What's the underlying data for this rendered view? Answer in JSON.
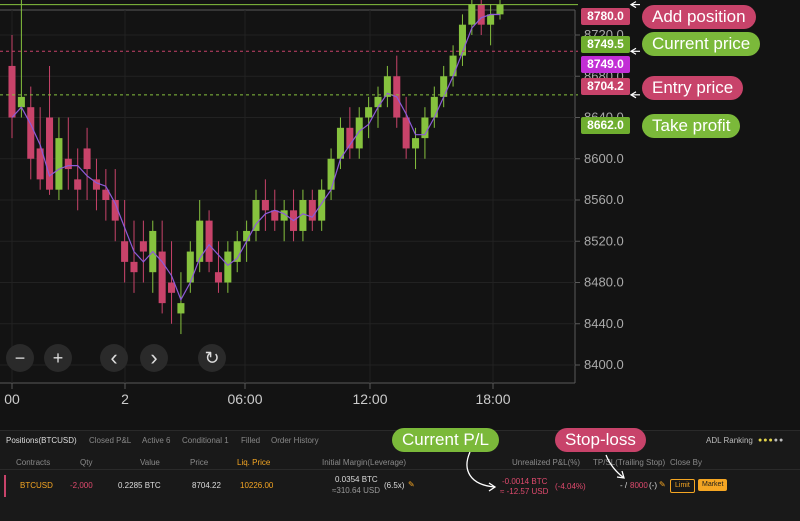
{
  "colors": {
    "up": "#86c23e",
    "down": "#c8436a",
    "accent": "#f5a623",
    "callout_red": "#c8436a",
    "callout_green": "#7bb93a",
    "mark_price": "#c22ed6"
  },
  "chart": {
    "y_ticks": [
      "8720.0",
      "8680.0",
      "8640.0",
      "8600.0",
      "8560.0",
      "8520.0",
      "8480.0",
      "8440.0",
      "8400.0"
    ],
    "x_ticks": [
      "00",
      "2",
      "06:00",
      "12:00",
      "18:00"
    ],
    "price_tags": {
      "add_position": "8780.0",
      "current": "8749.5",
      "mark": "8749.0",
      "entry": "8704.2",
      "take_profit": "8662.0"
    }
  },
  "callouts": {
    "add_position": "Add position",
    "current_price": "Current price",
    "entry_price": "Entry price",
    "take_profit": "Take profit",
    "current_pl": "Current P/L",
    "stop_loss": "Stop-loss"
  },
  "controls": {
    "zoom_out": "−",
    "zoom_in": "+",
    "prev": "‹",
    "next": "›",
    "reset": "↻"
  },
  "panel": {
    "tabs": [
      "Positions(BTCUSD)",
      "Closed P&L",
      "Active 6",
      "Conditional 1",
      "Filled",
      "Order History"
    ],
    "adl_label": "ADL Ranking",
    "headers": {
      "contracts": "Contracts",
      "qty": "Qty",
      "value": "Value",
      "price": "Price",
      "liq_price": "Liq. Price",
      "initial_margin": "Initial Margin(Leverage)",
      "unrealized": "Unrealized P&L(%)",
      "tpsl": "TP/SL(Trailing Stop)",
      "close_by": "Close By"
    },
    "row": {
      "contract": "BTCUSD",
      "qty": "-2,000",
      "value": "0.2285 BTC",
      "price": "8704.22",
      "liq_price": "10226.00",
      "margin_btc": "0.0354 BTC",
      "margin_usd": "≈310.64 USD",
      "leverage": "(6.5x)",
      "pl_btc": "-0.0014 BTC",
      "pl_usd": "≈ -12.57 USD",
      "pl_pct": "(-4.04%)",
      "tp": "- /",
      "sl": "8000",
      "trailing": "(-)",
      "limit_label": "Limit",
      "market_label": "Market"
    }
  }
}
